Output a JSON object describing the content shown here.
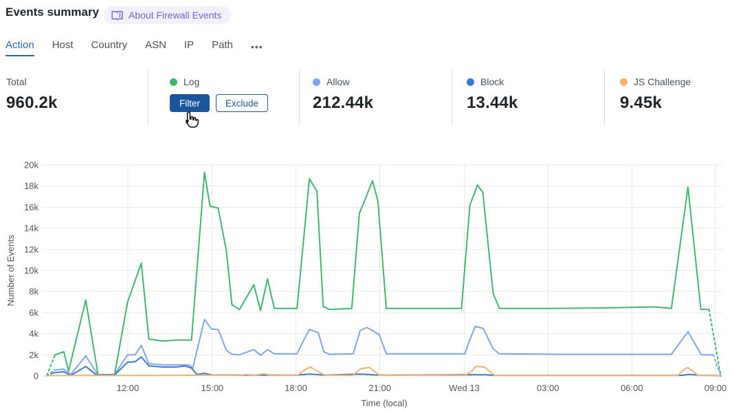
{
  "header": {
    "title": "Events summary",
    "about_badge": {
      "label": "About Firewall Events",
      "icon": "book-icon"
    }
  },
  "tabs": {
    "items": [
      {
        "label": "Action",
        "active": true
      },
      {
        "label": "Host",
        "active": false
      },
      {
        "label": "Country",
        "active": false
      },
      {
        "label": "ASN",
        "active": false
      },
      {
        "label": "IP",
        "active": false
      },
      {
        "label": "Path",
        "active": false
      }
    ],
    "more_icon_glyph": "•••"
  },
  "stats": {
    "total": {
      "label": "Total",
      "value": "960.2k"
    },
    "series": [
      {
        "label": "Log",
        "dot_color": "#3cb96b",
        "buttons": [
          {
            "label": "Filter"
          },
          {
            "label": "Exclude"
          }
        ]
      },
      {
        "label": "Allow",
        "value": "212.44k",
        "dot_color": "#7ea6f0"
      },
      {
        "label": "Block",
        "value": "13.44k",
        "dot_color": "#3b78d8"
      },
      {
        "label": "JS Challenge",
        "value": "9.45k",
        "dot_color": "#f2b46b"
      }
    ]
  },
  "colors": {
    "primary_button": "#1a569e",
    "tab_active": "#2b66bd",
    "badge_text": "#6e64d9",
    "badge_bg": "#f1f0fb",
    "grid": "#e6e8ea",
    "axis_text": "#51565b"
  },
  "chart_data": {
    "type": "line",
    "title": "",
    "xlabel": "Time (local)",
    "ylabel": "Number of Events",
    "values_unit": "thousands of events",
    "grid": true,
    "legend_position": "stats-row-above",
    "x_range": [
      0,
      24.05
    ],
    "y_range_k": [
      0,
      20
    ],
    "y_ticks": [
      {
        "v": 0,
        "label": "0"
      },
      {
        "v": 2,
        "label": "2k"
      },
      {
        "v": 4,
        "label": "4k"
      },
      {
        "v": 6,
        "label": "6k"
      },
      {
        "v": 8,
        "label": "8k"
      },
      {
        "v": 10,
        "label": "10k"
      },
      {
        "v": 12,
        "label": "12k"
      },
      {
        "v": 14,
        "label": "14k"
      },
      {
        "v": 16,
        "label": "16k"
      },
      {
        "v": 18,
        "label": "18k"
      },
      {
        "v": 20,
        "label": "20k"
      }
    ],
    "x_ticks": [
      {
        "t": 2.89,
        "label": "12:00"
      },
      {
        "t": 5.9,
        "label": "15:00"
      },
      {
        "t": 8.88,
        "label": "18:00"
      },
      {
        "t": 11.87,
        "label": "21:00"
      },
      {
        "t": 14.88,
        "label": "Wed 13"
      },
      {
        "t": 17.86,
        "label": "03:00"
      },
      {
        "t": 20.85,
        "label": "06:00"
      },
      {
        "t": 23.83,
        "label": "09:00"
      }
    ],
    "series": [
      {
        "name": "Log",
        "color": "#3cb96b",
        "dash_head_t": 0.3,
        "dash_tail_t": 23.6,
        "points": [
          [
            0.0,
            0.05
          ],
          [
            0.3,
            2.0
          ],
          [
            0.61,
            2.3
          ],
          [
            0.78,
            0.45
          ],
          [
            1.39,
            7.2
          ],
          [
            1.83,
            0.1
          ],
          [
            2.42,
            0.15
          ],
          [
            2.88,
            7.0
          ],
          [
            3.37,
            10.7
          ],
          [
            3.64,
            3.5
          ],
          [
            4.13,
            3.3
          ],
          [
            4.62,
            3.4
          ],
          [
            5.16,
            3.4
          ],
          [
            5.62,
            19.3
          ],
          [
            5.82,
            16.1
          ],
          [
            6.11,
            15.9
          ],
          [
            6.4,
            11.9
          ],
          [
            6.6,
            6.75
          ],
          [
            6.87,
            6.3
          ],
          [
            7.38,
            8.65
          ],
          [
            7.62,
            6.2
          ],
          [
            7.87,
            9.2
          ],
          [
            8.11,
            6.4
          ],
          [
            8.92,
            6.4
          ],
          [
            9.36,
            18.7
          ],
          [
            9.63,
            17.5
          ],
          [
            9.85,
            6.6
          ],
          [
            10.07,
            6.3
          ],
          [
            10.87,
            6.4
          ],
          [
            11.14,
            15.4
          ],
          [
            11.61,
            18.5
          ],
          [
            11.8,
            16.6
          ],
          [
            12.1,
            6.4
          ],
          [
            14.78,
            6.4
          ],
          [
            15.08,
            16.2
          ],
          [
            15.35,
            18.1
          ],
          [
            15.54,
            17.4
          ],
          [
            15.91,
            7.8
          ],
          [
            16.13,
            6.4
          ],
          [
            18.0,
            6.4
          ],
          [
            20.0,
            6.45
          ],
          [
            21.63,
            6.55
          ],
          [
            22.26,
            6.4
          ],
          [
            22.85,
            17.9
          ],
          [
            23.31,
            6.3
          ],
          [
            23.6,
            6.3
          ],
          [
            24.02,
            0.0
          ]
        ]
      },
      {
        "name": "Allow",
        "color": "#7ea6f0",
        "dash_head_t": 0.25,
        "dash_tail_t": 23.75,
        "points": [
          [
            0.0,
            0.02
          ],
          [
            0.25,
            0.55
          ],
          [
            0.61,
            0.65
          ],
          [
            0.86,
            0.15
          ],
          [
            1.39,
            1.9
          ],
          [
            1.83,
            0.1
          ],
          [
            2.42,
            0.15
          ],
          [
            2.88,
            2.0
          ],
          [
            3.15,
            2.0
          ],
          [
            3.37,
            2.9
          ],
          [
            3.64,
            1.15
          ],
          [
            4.13,
            1.05
          ],
          [
            4.62,
            1.05
          ],
          [
            4.94,
            1.05
          ],
          [
            5.11,
            1.0
          ],
          [
            5.2,
            0.7
          ],
          [
            5.62,
            5.35
          ],
          [
            5.87,
            4.45
          ],
          [
            6.11,
            4.4
          ],
          [
            6.4,
            2.45
          ],
          [
            6.6,
            2.05
          ],
          [
            6.87,
            2.0
          ],
          [
            7.38,
            2.5
          ],
          [
            7.62,
            1.95
          ],
          [
            7.87,
            2.5
          ],
          [
            8.11,
            2.1
          ],
          [
            8.92,
            2.1
          ],
          [
            9.14,
            3.3
          ],
          [
            9.36,
            4.4
          ],
          [
            9.68,
            4.1
          ],
          [
            9.87,
            2.3
          ],
          [
            10.07,
            2.05
          ],
          [
            10.92,
            2.1
          ],
          [
            11.17,
            4.3
          ],
          [
            11.4,
            4.6
          ],
          [
            11.61,
            4.3
          ],
          [
            11.85,
            3.9
          ],
          [
            12.1,
            2.1
          ],
          [
            14.9,
            2.1
          ],
          [
            15.03,
            3.1
          ],
          [
            15.27,
            4.7
          ],
          [
            15.56,
            4.5
          ],
          [
            15.9,
            2.6
          ],
          [
            16.13,
            2.1
          ],
          [
            18.5,
            2.05
          ],
          [
            22.26,
            2.05
          ],
          [
            22.85,
            4.2
          ],
          [
            23.33,
            2.0
          ],
          [
            23.75,
            2.0
          ],
          [
            24.02,
            0.0
          ]
        ]
      },
      {
        "name": "Block",
        "color": "#3b78d8",
        "dash_head_t": 0.25,
        "dash_tail_t": 23.8,
        "points": [
          [
            0.0,
            0.02
          ],
          [
            0.25,
            0.3
          ],
          [
            0.61,
            0.4
          ],
          [
            0.86,
            0.05
          ],
          [
            1.39,
            0.9
          ],
          [
            1.76,
            0.12
          ],
          [
            2.42,
            0.1
          ],
          [
            2.88,
            1.3
          ],
          [
            3.15,
            1.35
          ],
          [
            3.37,
            1.8
          ],
          [
            3.64,
            0.95
          ],
          [
            4.13,
            0.85
          ],
          [
            4.62,
            0.85
          ],
          [
            4.94,
            0.95
          ],
          [
            5.16,
            0.75
          ],
          [
            5.35,
            0.15
          ],
          [
            5.62,
            0.25
          ],
          [
            5.9,
            0.1
          ],
          [
            7.0,
            0.08
          ],
          [
            8.9,
            0.08
          ],
          [
            9.36,
            0.18
          ],
          [
            9.9,
            0.08
          ],
          [
            11.2,
            0.18
          ],
          [
            11.7,
            0.1
          ],
          [
            12.1,
            0.08
          ],
          [
            15.1,
            0.12
          ],
          [
            15.6,
            0.12
          ],
          [
            16.0,
            0.06
          ],
          [
            22.6,
            0.06
          ],
          [
            22.9,
            0.15
          ],
          [
            23.3,
            0.06
          ],
          [
            23.8,
            0.05
          ],
          [
            24.0,
            0.0
          ]
        ]
      },
      {
        "name": "JS Challenge",
        "color": "#f2b46b",
        "points": [
          [
            0.0,
            0.03
          ],
          [
            1.0,
            0.05
          ],
          [
            2.9,
            0.05
          ],
          [
            4.5,
            0.06
          ],
          [
            5.8,
            0.08
          ],
          [
            6.9,
            0.06
          ],
          [
            7.1,
            0.15
          ],
          [
            7.35,
            0.06
          ],
          [
            7.75,
            0.2
          ],
          [
            8.0,
            0.05
          ],
          [
            8.95,
            0.08
          ],
          [
            9.2,
            0.6
          ],
          [
            9.4,
            0.85
          ],
          [
            9.6,
            0.5
          ],
          [
            9.9,
            0.08
          ],
          [
            10.9,
            0.06
          ],
          [
            11.2,
            0.7
          ],
          [
            11.5,
            0.8
          ],
          [
            11.85,
            0.08
          ],
          [
            14.9,
            0.06
          ],
          [
            15.1,
            0.35
          ],
          [
            15.3,
            0.9
          ],
          [
            15.6,
            0.85
          ],
          [
            15.95,
            0.06
          ],
          [
            22.5,
            0.06
          ],
          [
            22.7,
            0.6
          ],
          [
            22.85,
            0.8
          ],
          [
            23.2,
            0.07
          ],
          [
            24.0,
            0.04
          ]
        ]
      }
    ]
  }
}
